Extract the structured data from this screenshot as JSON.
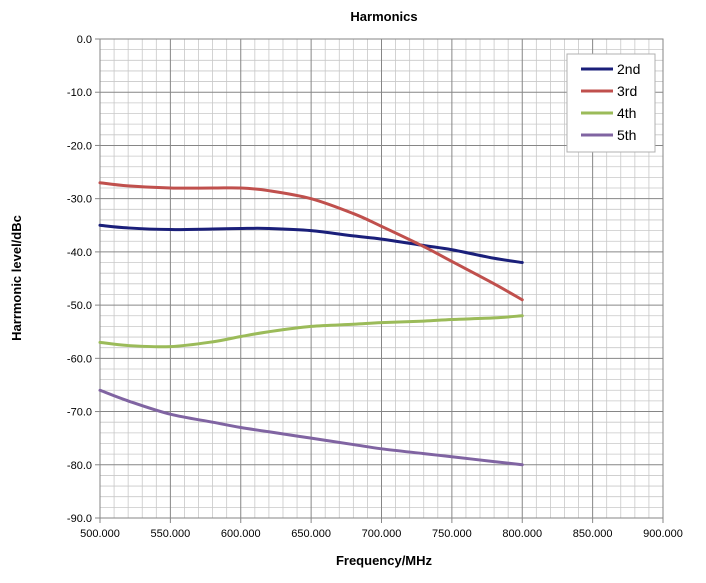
{
  "chart_data": {
    "type": "line",
    "title": "Harmonics",
    "xlabel": "Frequency/MHz",
    "ylabel": "Harrmonic level/dBc",
    "xlim": [
      500,
      900
    ],
    "ylim": [
      -90,
      0
    ],
    "x_major_step": 50,
    "x_minor_step": 10,
    "y_major_step": 10,
    "y_minor_step": 2,
    "x_tick_labels": [
      "500.000",
      "550.000",
      "600.000",
      "650.000",
      "700.000",
      "750.000",
      "800.000",
      "850.000",
      "900.000"
    ],
    "y_tick_labels": [
      "0.0",
      "-10.0",
      "-20.0",
      "-30.0",
      "-40.0",
      "-50.0",
      "-60.0",
      "-70.0",
      "-80.0",
      "-90.0"
    ],
    "grid": true,
    "legend_position": "top-right",
    "series": [
      {
        "name": "2nd",
        "color": "#1a1f7a",
        "x": [
          500,
          520,
          550,
          580,
          600,
          620,
          650,
          680,
          700,
          730,
          750,
          780,
          800
        ],
        "values": [
          -35,
          -35.5,
          -35.8,
          -35.7,
          -35.6,
          -35.6,
          -36,
          -37,
          -37.6,
          -38.8,
          -39.6,
          -41.2,
          -42
        ]
      },
      {
        "name": "3rd",
        "color": "#c0504d",
        "x": [
          500,
          520,
          550,
          580,
          600,
          620,
          650,
          680,
          700,
          730,
          750,
          780,
          800
        ],
        "values": [
          -27,
          -27.6,
          -28,
          -28,
          -28,
          -28.5,
          -30,
          -32.8,
          -35.2,
          -39,
          -41.8,
          -46,
          -49
        ]
      },
      {
        "name": "4th",
        "color": "#9bbb59",
        "x": [
          500,
          520,
          550,
          580,
          600,
          620,
          650,
          680,
          700,
          730,
          750,
          780,
          800
        ],
        "values": [
          -57,
          -57.6,
          -57.8,
          -56.9,
          -55.9,
          -55,
          -54,
          -53.6,
          -53.3,
          -53,
          -52.7,
          -52.4,
          -52
        ]
      },
      {
        "name": "5th",
        "color": "#8064a2",
        "x": [
          500,
          520,
          550,
          580,
          600,
          620,
          650,
          680,
          700,
          730,
          750,
          780,
          800
        ],
        "values": [
          -66,
          -68,
          -70.5,
          -72,
          -73,
          -73.8,
          -75,
          -76.2,
          -77,
          -77.9,
          -78.5,
          -79.4,
          -80
        ]
      }
    ]
  }
}
